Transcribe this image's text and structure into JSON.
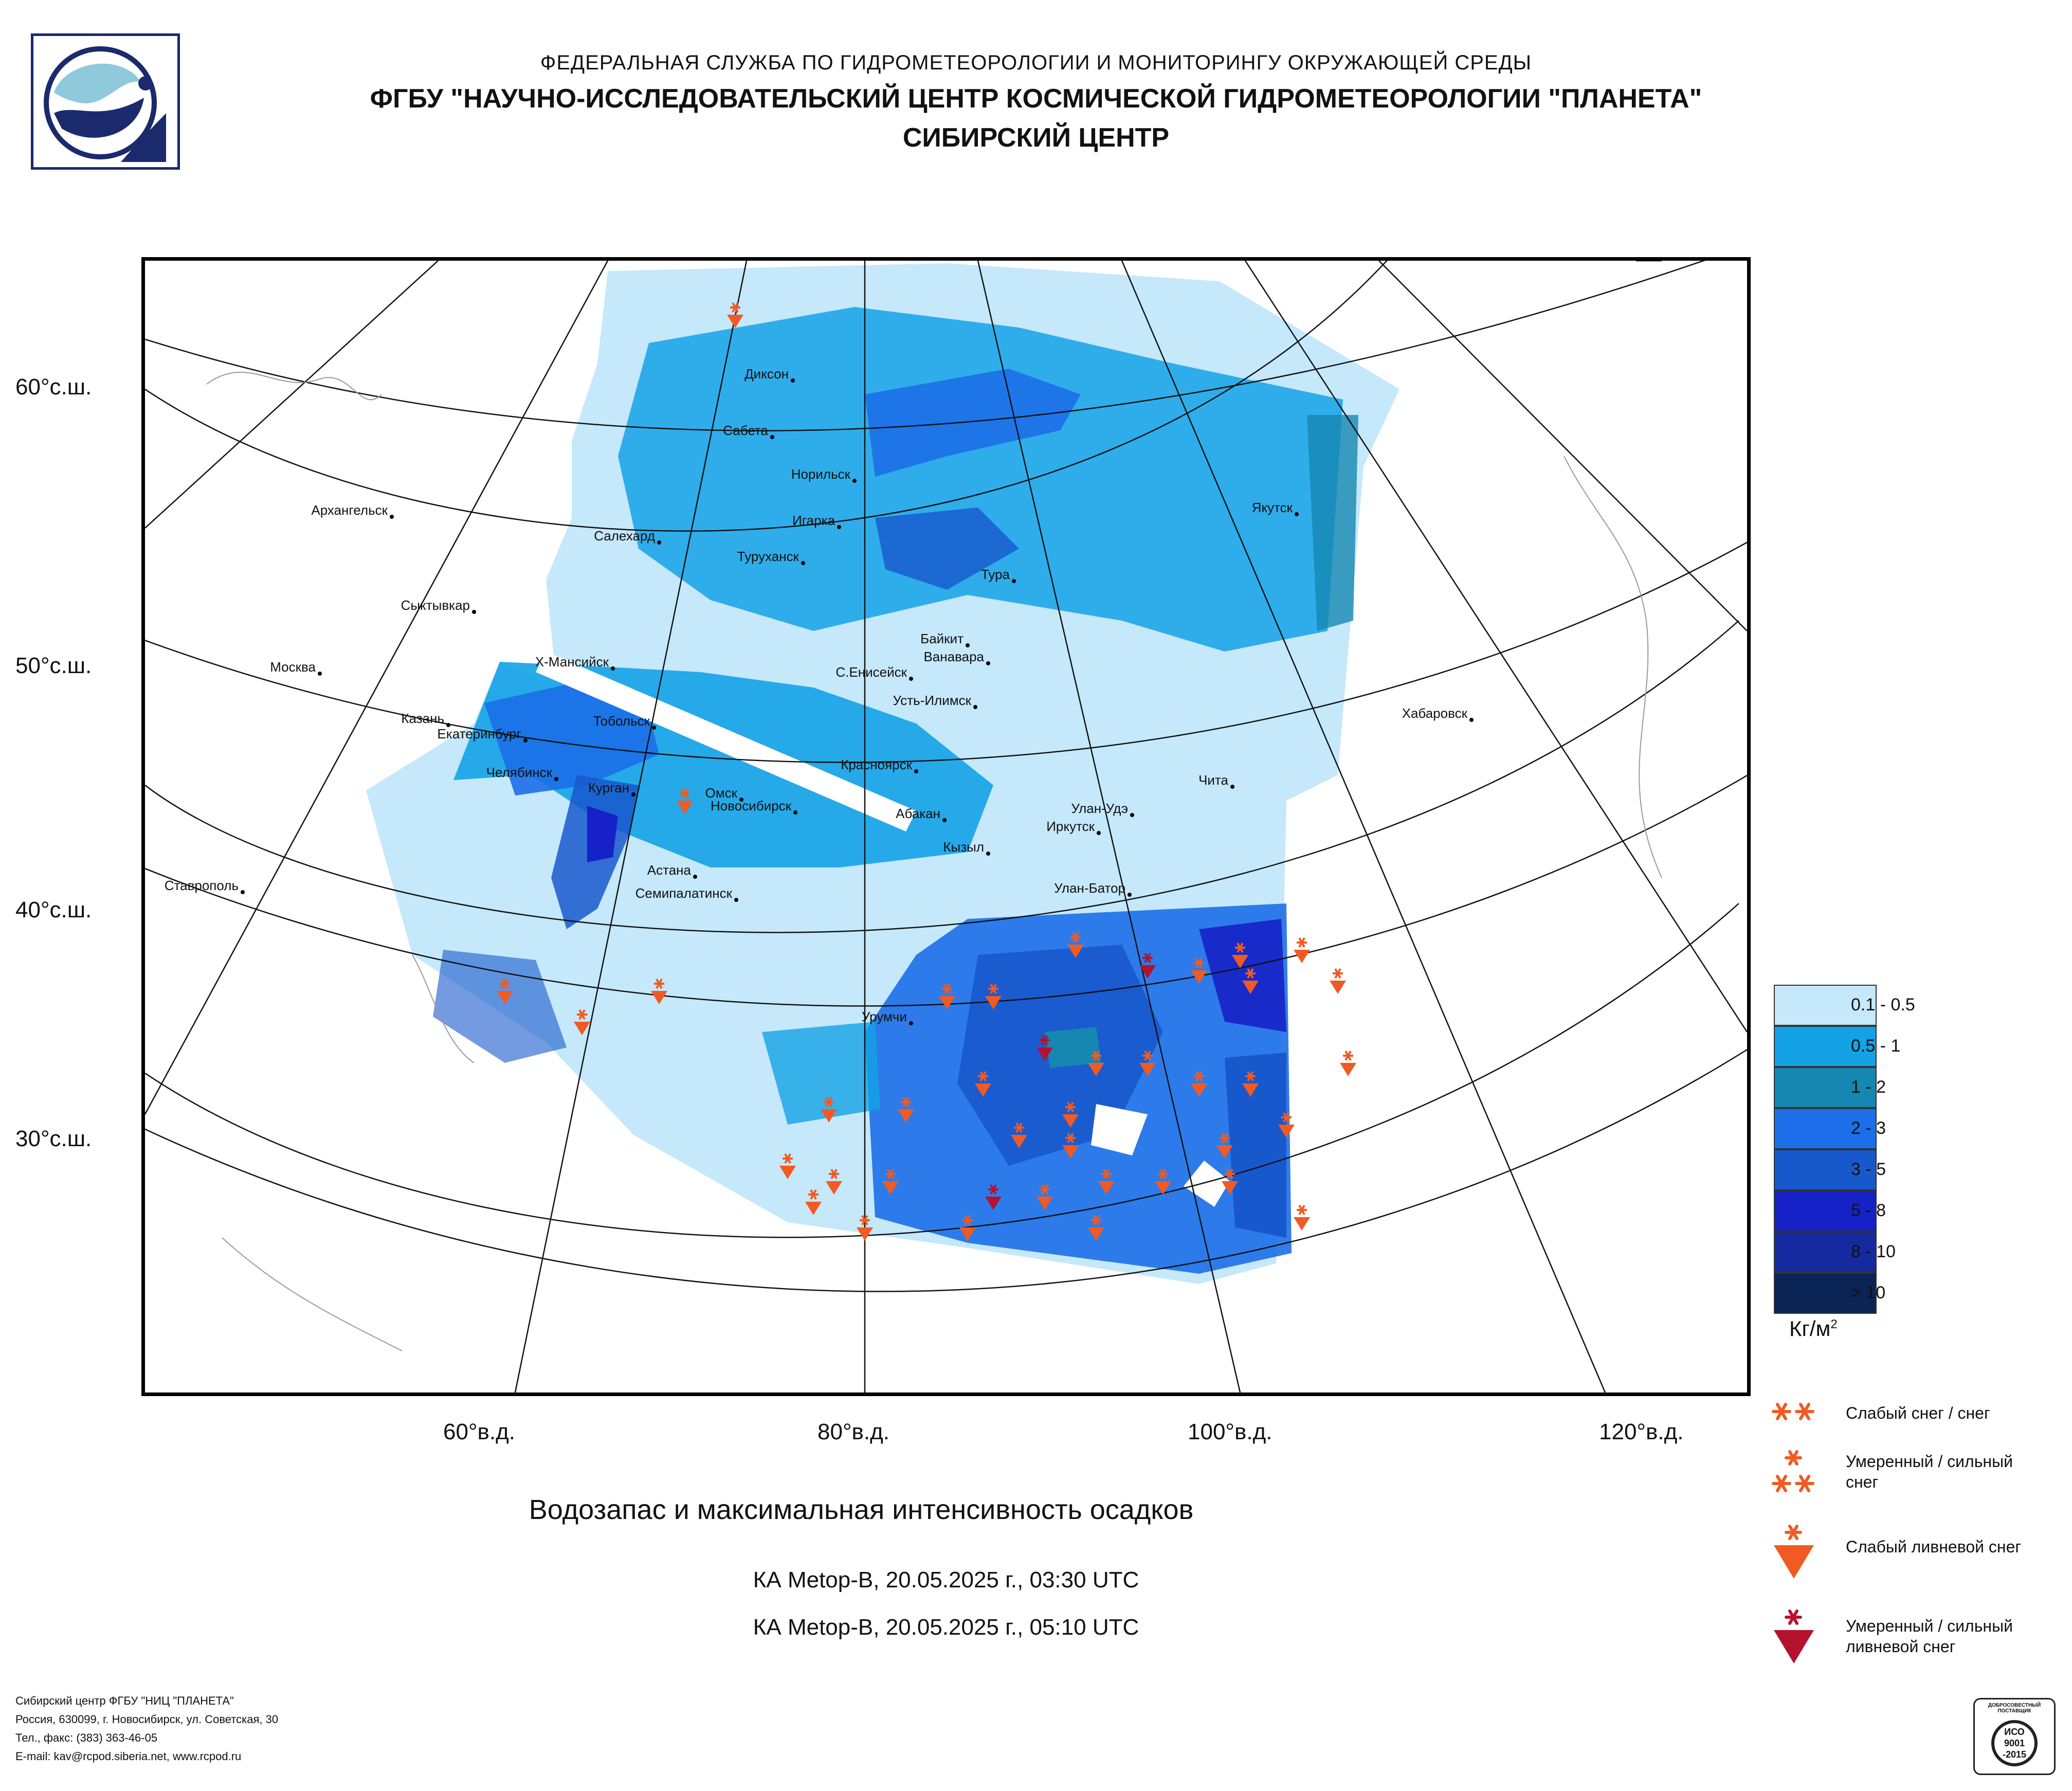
{
  "header": {
    "line1": "ФЕДЕРАЛЬНАЯ СЛУЖБА ПО ГИДРОМЕТЕОРОЛОГИИ И МОНИТОРИНГУ ОКРУЖАЮЩЕЙ СРЕДЫ",
    "line2": "ФГБУ \"НАУЧНО-ИССЛЕДОВАТЕЛЬСКИЙ ЦЕНТР КОСМИЧЕСКОЙ ГИДРОМЕТЕОРОЛОГИИ \"ПЛАНЕТА\"",
    "line3": "СИБИРСКИЙ ЦЕНТР"
  },
  "axes": {
    "lat_labels": [
      "60°с.ш.",
      "50°с.ш.",
      "40°с.ш.",
      "30°с.ш."
    ],
    "lon_labels": [
      "60°в.д.",
      "80°в.д.",
      "100°в.д.",
      "120°в.д."
    ]
  },
  "cities": [
    "Диксон",
    "Сабета",
    "Норильск",
    "Архангельск",
    "Салехард",
    "Игарка",
    "Туруханск",
    "Якутск",
    "Тура",
    "Сыктывкар",
    "Байкит",
    "Ванавара",
    "Москва",
    "Х-Мансийск",
    "С.Енисейск",
    "Усть-Илимск",
    "Хабаровск",
    "Казань",
    "Тобольск",
    "Екатеринбург",
    "Красноярск",
    "Челябинск",
    "Курган",
    "Чита",
    "Омск",
    "Новосибирск",
    "Абакан",
    "Улан-Удэ",
    "Иркутск",
    "Кызыл",
    "Астана",
    "Ставрополь",
    "Семипалатинск",
    "Улан-Батор",
    "Урумчи"
  ],
  "legend": {
    "ranges": [
      {
        "label": "0.1 - 0.5",
        "color": "#c5e8fb"
      },
      {
        "label": "0.5 - 1",
        "color": "#14a2e6"
      },
      {
        "label": "1 - 2",
        "color": "#1587b1"
      },
      {
        "label": "2 - 3",
        "color": "#1c6fe8"
      },
      {
        "label": "3 - 5",
        "color": "#1858cd"
      },
      {
        "label": "5 - 8",
        "color": "#1622c7"
      },
      {
        "label": "8 - 10",
        "color": "#162aa0"
      },
      {
        "label": "> 10",
        "color": "#0b2456"
      }
    ],
    "unit": "Кг/м",
    "unit_sup": "2",
    "symbols": [
      {
        "label1": "Слабый снег / снег",
        "label2": ""
      },
      {
        "label1": "Умеренный / сильный",
        "label2": "снег"
      },
      {
        "label1": "Слабый ливневой снег",
        "label2": ""
      },
      {
        "label1": "Умеренный / сильный",
        "label2": "ливневой снег"
      }
    ]
  },
  "caption": "Водозапас и максимальная интенсивность осадков",
  "satellite": [
    "КА Metop-B, 20.05.2025 г., 03:30 UTC",
    "КА Metop-B, 20.05.2025 г., 05:10 UTC"
  ],
  "footer": [
    "Сибирский центр ФГБУ \"НИЦ \"ПЛАНЕТА\"",
    "Россия, 630099, г. Новосибирск, ул. Советская, 30",
    "Тел., факс: (383) 363-46-05",
    "E-mail: kav@rcpod.siberia.net, www.rcpod.ru"
  ],
  "iso": {
    "top": "ДОБРОСОВЕСТНЫЙ ПОСТАВЩИК",
    "l1": "ИСО",
    "l2": "9001",
    "l3": "-2015"
  },
  "colors": {
    "orange": "#f15a22",
    "darkred": "#b5122e",
    "frame": "#000000"
  }
}
